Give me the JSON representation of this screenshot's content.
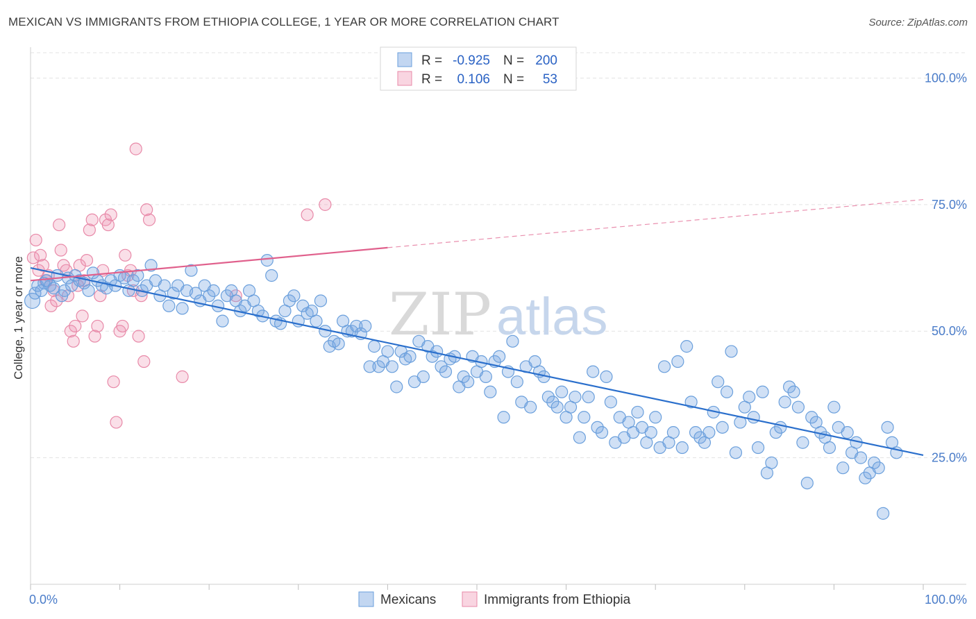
{
  "title": "MEXICAN VS IMMIGRANTS FROM ETHIOPIA COLLEGE, 1 YEAR OR MORE CORRELATION CHART",
  "source": "Source: ZipAtlas.com",
  "watermark": {
    "zip": "ZIP",
    "atlas": "atlas"
  },
  "colors": {
    "blue": "#6a9fdc",
    "blue_fill": "rgba(120,165,225,0.35)",
    "blue_line": "#2a6fcc",
    "pink": "#e889a8",
    "pink_fill": "rgba(240,150,180,0.30)",
    "pink_line": "#e0608c"
  },
  "legend": {
    "r_label": "R =",
    "n_label": "N =",
    "rows": [
      {
        "r": "-0.925",
        "n": "200"
      },
      {
        "r": "0.106",
        "n": "53"
      }
    ]
  },
  "chart_data": {
    "type": "scatter",
    "xlabel": "",
    "ylabel": "College, 1 year or more",
    "xlim": [
      0,
      100
    ],
    "ylim": [
      0,
      105
    ],
    "x_tick_labels": [
      "0.0%",
      "100.0%"
    ],
    "y_tick_labels": [
      "25.0%",
      "50.0%",
      "75.0%",
      "100.0%"
    ],
    "y_ticks": [
      25,
      50,
      75,
      100
    ],
    "series": [
      {
        "name": "Mexicans",
        "trend": {
          "x0": 0,
          "y0": 62.5,
          "x1": 100,
          "y1": 25.5
        },
        "points": [
          [
            0.2,
            56
          ],
          [
            0.5,
            57.5
          ],
          [
            0.8,
            59
          ],
          [
            1.2,
            58
          ],
          [
            1.5,
            59.5
          ],
          [
            1.8,
            60
          ],
          [
            2.2,
            59
          ],
          [
            2.6,
            58.5
          ],
          [
            3,
            61
          ],
          [
            3.5,
            57
          ],
          [
            3.8,
            58
          ],
          [
            4.2,
            60.5
          ],
          [
            4.6,
            59
          ],
          [
            5,
            61
          ],
          [
            5.5,
            60
          ],
          [
            6,
            59.5
          ],
          [
            6.5,
            58
          ],
          [
            7,
            61.5
          ],
          [
            7.5,
            60
          ],
          [
            8,
            59
          ],
          [
            8.5,
            58.5
          ],
          [
            9,
            60
          ],
          [
            9.5,
            59
          ],
          [
            10,
            61
          ],
          [
            10.5,
            60.5
          ],
          [
            11,
            58
          ],
          [
            11.5,
            60
          ],
          [
            12,
            61
          ],
          [
            12.5,
            58
          ],
          [
            13,
            59
          ],
          [
            13.5,
            63
          ],
          [
            14,
            60
          ],
          [
            14.5,
            57
          ],
          [
            15,
            59
          ],
          [
            15.5,
            55
          ],
          [
            16,
            57.5
          ],
          [
            16.5,
            59
          ],
          [
            17,
            54.5
          ],
          [
            17.5,
            58
          ],
          [
            18,
            62
          ],
          [
            18.5,
            57.5
          ],
          [
            19,
            56
          ],
          [
            19.5,
            59
          ],
          [
            20,
            57
          ],
          [
            20.5,
            58
          ],
          [
            21,
            55
          ],
          [
            21.5,
            52
          ],
          [
            22,
            57
          ],
          [
            22.5,
            58
          ],
          [
            23,
            56
          ],
          [
            23.5,
            54
          ],
          [
            24,
            55
          ],
          [
            24.5,
            58
          ],
          [
            25,
            56
          ],
          [
            25.5,
            54
          ],
          [
            26,
            53
          ],
          [
            26.5,
            64
          ],
          [
            27,
            61
          ],
          [
            27.5,
            52
          ],
          [
            28,
            51.5
          ],
          [
            28.5,
            54
          ],
          [
            29,
            56
          ],
          [
            29.5,
            57
          ],
          [
            30,
            52
          ],
          [
            30.5,
            55
          ],
          [
            31,
            53.5
          ],
          [
            31.5,
            54
          ],
          [
            32,
            52
          ],
          [
            32.5,
            56
          ],
          [
            33,
            50
          ],
          [
            33.5,
            47
          ],
          [
            34,
            48
          ],
          [
            34.5,
            47.5
          ],
          [
            35,
            52
          ],
          [
            35.5,
            50
          ],
          [
            36,
            50
          ],
          [
            36.5,
            51
          ],
          [
            37,
            49.5
          ],
          [
            37.5,
            51
          ],
          [
            38,
            43
          ],
          [
            38.5,
            47
          ],
          [
            39,
            43
          ],
          [
            39.5,
            44
          ],
          [
            40,
            46
          ],
          [
            40.5,
            43
          ],
          [
            41,
            39
          ],
          [
            41.5,
            46
          ],
          [
            42,
            44.5
          ],
          [
            42.5,
            45
          ],
          [
            43,
            40
          ],
          [
            43.5,
            48
          ],
          [
            44,
            41
          ],
          [
            44.5,
            47
          ],
          [
            45,
            45
          ],
          [
            45.5,
            46
          ],
          [
            46,
            43
          ],
          [
            46.5,
            42
          ],
          [
            47,
            44.5
          ],
          [
            47.5,
            45
          ],
          [
            48,
            39
          ],
          [
            48.5,
            41
          ],
          [
            49,
            40
          ],
          [
            49.5,
            45
          ],
          [
            50,
            42
          ],
          [
            50.5,
            44
          ],
          [
            51,
            41
          ],
          [
            51.5,
            38
          ],
          [
            52,
            44
          ],
          [
            52.5,
            45
          ],
          [
            53,
            33
          ],
          [
            53.5,
            42
          ],
          [
            54,
            48
          ],
          [
            54.5,
            40
          ],
          [
            55,
            36
          ],
          [
            55.5,
            43
          ],
          [
            56,
            35
          ],
          [
            56.5,
            44
          ],
          [
            57,
            42
          ],
          [
            57.5,
            41
          ],
          [
            58,
            37
          ],
          [
            58.5,
            36
          ],
          [
            59,
            35
          ],
          [
            59.5,
            38
          ],
          [
            60,
            33
          ],
          [
            60.5,
            35
          ],
          [
            61,
            37
          ],
          [
            61.5,
            29
          ],
          [
            62,
            33
          ],
          [
            62.5,
            37
          ],
          [
            63,
            42
          ],
          [
            63.5,
            31
          ],
          [
            64,
            30
          ],
          [
            64.5,
            41
          ],
          [
            65,
            36
          ],
          [
            65.5,
            28
          ],
          [
            66,
            33
          ],
          [
            66.5,
            29
          ],
          [
            67,
            32
          ],
          [
            67.5,
            30
          ],
          [
            68,
            34
          ],
          [
            68.5,
            31
          ],
          [
            69,
            28
          ],
          [
            69.5,
            30
          ],
          [
            70,
            33
          ],
          [
            70.5,
            27
          ],
          [
            71,
            43
          ],
          [
            71.5,
            28
          ],
          [
            72,
            30
          ],
          [
            72.5,
            44
          ],
          [
            73,
            27
          ],
          [
            73.5,
            47
          ],
          [
            74,
            36
          ],
          [
            74.5,
            30
          ],
          [
            75,
            29
          ],
          [
            75.5,
            28
          ],
          [
            76,
            30
          ],
          [
            76.5,
            34
          ],
          [
            77,
            40
          ],
          [
            77.5,
            31
          ],
          [
            78,
            38
          ],
          [
            78.5,
            46
          ],
          [
            79,
            26
          ],
          [
            79.5,
            32
          ],
          [
            80,
            35
          ],
          [
            80.5,
            37
          ],
          [
            81,
            33
          ],
          [
            81.5,
            27
          ],
          [
            82,
            38
          ],
          [
            82.5,
            22
          ],
          [
            83,
            24
          ],
          [
            83.5,
            30
          ],
          [
            84,
            31
          ],
          [
            84.5,
            36
          ],
          [
            85,
            39
          ],
          [
            85.5,
            38
          ],
          [
            86,
            35
          ],
          [
            86.5,
            28
          ],
          [
            87,
            20
          ],
          [
            87.5,
            33
          ],
          [
            88,
            32
          ],
          [
            88.5,
            30
          ],
          [
            89,
            29
          ],
          [
            89.5,
            27
          ],
          [
            90,
            35
          ],
          [
            90.5,
            31
          ],
          [
            91,
            23
          ],
          [
            91.5,
            30
          ],
          [
            92,
            26
          ],
          [
            92.5,
            28
          ],
          [
            93,
            25
          ],
          [
            93.5,
            21
          ],
          [
            94,
            22
          ],
          [
            94.5,
            24
          ],
          [
            95,
            23
          ],
          [
            95.5,
            14
          ],
          [
            96,
            31
          ],
          [
            96.5,
            28
          ],
          [
            97,
            26
          ]
        ]
      },
      {
        "name": "Immigrants from Ethiopia",
        "trend": {
          "x0": 0,
          "y0": 60,
          "x1": 40,
          "y1": 66.5,
          "dash_to_x": 100,
          "dash_to_y": 76
        },
        "points": [
          [
            0.3,
            64.5
          ],
          [
            0.6,
            68
          ],
          [
            0.9,
            62
          ],
          [
            1.1,
            65
          ],
          [
            1.4,
            63
          ],
          [
            1.7,
            60
          ],
          [
            2,
            61
          ],
          [
            2.3,
            55
          ],
          [
            2.6,
            58
          ],
          [
            2.9,
            56
          ],
          [
            3.2,
            71
          ],
          [
            3.4,
            66
          ],
          [
            3.7,
            63
          ],
          [
            4,
            62
          ],
          [
            4.2,
            57
          ],
          [
            4.5,
            50
          ],
          [
            4.8,
            48
          ],
          [
            5,
            51
          ],
          [
            5.3,
            59
          ],
          [
            5.5,
            63
          ],
          [
            5.8,
            53
          ],
          [
            6,
            60
          ],
          [
            6.3,
            64
          ],
          [
            6.6,
            70
          ],
          [
            6.9,
            72
          ],
          [
            7.2,
            49
          ],
          [
            7.5,
            51
          ],
          [
            7.8,
            57
          ],
          [
            8.1,
            62
          ],
          [
            8.4,
            72
          ],
          [
            8.7,
            71
          ],
          [
            9,
            73
          ],
          [
            9.3,
            40
          ],
          [
            9.6,
            32
          ],
          [
            10,
            50
          ],
          [
            10.3,
            51
          ],
          [
            10.6,
            65
          ],
          [
            10.9,
            61
          ],
          [
            11.2,
            62
          ],
          [
            11.5,
            58
          ],
          [
            11.8,
            86
          ],
          [
            12.1,
            49
          ],
          [
            12.4,
            57
          ],
          [
            12.7,
            44
          ],
          [
            13,
            74
          ],
          [
            13.3,
            72
          ],
          [
            17,
            41
          ],
          [
            23,
            57
          ],
          [
            31,
            73
          ],
          [
            33,
            75
          ]
        ]
      }
    ]
  },
  "bottom_legend": [
    {
      "label": "Mexicans"
    },
    {
      "label": "Immigrants from Ethiopia"
    }
  ]
}
